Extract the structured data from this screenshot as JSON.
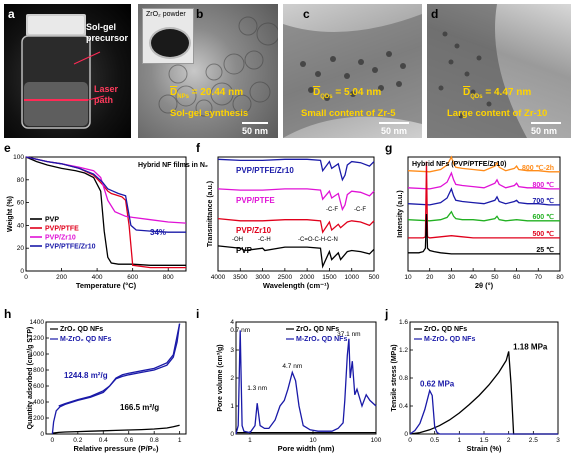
{
  "panels": {
    "a": {
      "label": "a",
      "sol_gel": "Sol-gel\nprecursor",
      "laser": "Laser\npath"
    },
    "b": {
      "label": "b",
      "inset_label": "ZrO₂ powder",
      "size_main": "D",
      "size_sub": "NPs",
      "size_val": " = 20.44 nm",
      "caption": "Sol-gel synthesis",
      "scale": "50 nm"
    },
    "c": {
      "label": "c",
      "size_main": "D",
      "size_sub": "QDs",
      "size_val": " = 5.04 nm",
      "caption": "Small content of Zr-5",
      "scale": "50 nm"
    },
    "d": {
      "label": "d",
      "size_main": "D",
      "size_sub": "QDs",
      "size_val": " = 4.47 nm",
      "caption": "Large content of Zr-10",
      "scale": "50 nm"
    }
  },
  "colors": {
    "black": "#000000",
    "red": "#e0001b",
    "magenta": "#e012d6",
    "blue": "#1a1aa8",
    "green": "#22b022",
    "orange": "#ff8c1a",
    "purple": "#9b2fc9"
  },
  "chart_data": [
    {
      "id": "e",
      "label": "e",
      "type": "line",
      "xlabel": "Temperature (°C)",
      "ylabel": "Weight (%)",
      "xlim": [
        0,
        900
      ],
      "ylim": [
        0,
        100
      ],
      "xticks": [
        0,
        200,
        400,
        600,
        800
      ],
      "yticks": [
        0,
        20,
        40,
        60,
        80,
        100
      ],
      "annotation": "Hybrid NF films in N₂",
      "annotation2": "34%",
      "legend": [
        "PVP",
        "PVP/PTFE",
        "PVP/Zr10",
        "PVP/PTFE/Zr10"
      ],
      "series": [
        {
          "name": "PVP",
          "color": "black",
          "x": [
            0,
            60,
            120,
            200,
            280,
            330,
            380,
            420,
            440,
            460,
            480,
            520,
            600,
            700,
            800,
            900
          ],
          "y": [
            100,
            96,
            93,
            90,
            88,
            86,
            82,
            70,
            35,
            12,
            7,
            6,
            6,
            5,
            5,
            5
          ]
        },
        {
          "name": "PVP/PTFE",
          "color": "red",
          "x": [
            0,
            60,
            120,
            200,
            300,
            380,
            430,
            460,
            480,
            500,
            520,
            540,
            560,
            580,
            600,
            700,
            800,
            900
          ],
          "y": [
            100,
            98,
            96,
            94,
            90,
            84,
            76,
            70,
            68,
            67,
            66,
            65,
            62,
            40,
            5,
            3,
            3,
            3
          ]
        },
        {
          "name": "PVP/Zr10",
          "color": "magenta",
          "x": [
            0,
            60,
            120,
            200,
            300,
            380,
            420,
            460,
            500,
            560,
            600,
            700,
            800,
            900
          ],
          "y": [
            100,
            98,
            96,
            94,
            91,
            88,
            82,
            62,
            52,
            48,
            47,
            45,
            43,
            42
          ]
        },
        {
          "name": "PVP/PTFE/Zr10",
          "color": "blue",
          "x": [
            0,
            60,
            120,
            200,
            300,
            380,
            430,
            460,
            490,
            520,
            560,
            590,
            620,
            700,
            800,
            900
          ],
          "y": [
            100,
            98,
            96,
            94,
            90,
            85,
            78,
            72,
            70,
            68,
            66,
            40,
            36,
            35,
            34,
            34
          ]
        }
      ]
    },
    {
      "id": "f",
      "label": "f",
      "type": "line",
      "xlabel": "Wavelength (cm⁻¹)",
      "ylabel": "Transmittance (a.u.)",
      "xlim": [
        4000,
        500
      ],
      "xticks": [
        4000,
        3500,
        3000,
        2500,
        2000,
        1500,
        1000,
        500
      ],
      "peaks": [
        "-OH",
        "-C-H",
        "-C=O-C-H-C-N",
        "-C-F",
        "-C-F"
      ],
      "series": [
        {
          "name": "PVP/PTFE/Zr10",
          "color": "blue",
          "x": [
            4000,
            3500,
            3000,
            2500,
            2000,
            1700,
            1650,
            1500,
            1450,
            1300,
            1250,
            1210,
            1150,
            1100,
            1000,
            800,
            600,
            500
          ],
          "y": [
            0.98,
            0.97,
            0.97,
            0.98,
            0.98,
            0.97,
            0.88,
            0.96,
            0.9,
            0.94,
            0.86,
            0.8,
            0.84,
            0.93,
            0.96,
            0.95,
            0.92,
            0.96
          ]
        },
        {
          "name": "PVP/PTFE",
          "color": "magenta",
          "x": [
            4000,
            3500,
            3000,
            2500,
            2000,
            1700,
            1650,
            1500,
            1450,
            1300,
            1250,
            1210,
            1150,
            1100,
            1000,
            800,
            600,
            500
          ],
          "y": [
            0.72,
            0.71,
            0.71,
            0.72,
            0.72,
            0.71,
            0.63,
            0.7,
            0.64,
            0.68,
            0.6,
            0.54,
            0.58,
            0.67,
            0.7,
            0.69,
            0.66,
            0.7
          ]
        },
        {
          "name": "PVP/Zr10",
          "color": "red",
          "x": [
            4000,
            3500,
            3000,
            2500,
            2000,
            1700,
            1650,
            1500,
            1450,
            1300,
            1250,
            1100,
            1000,
            800,
            600,
            500
          ],
          "y": [
            0.46,
            0.44,
            0.44,
            0.45,
            0.45,
            0.44,
            0.34,
            0.43,
            0.36,
            0.41,
            0.38,
            0.43,
            0.44,
            0.43,
            0.4,
            0.44
          ]
        },
        {
          "name": "PVP",
          "color": "black",
          "x": [
            4000,
            3500,
            3400,
            3000,
            2950,
            2500,
            2000,
            1700,
            1650,
            1500,
            1450,
            1300,
            1250,
            1100,
            1000,
            800,
            600,
            500
          ],
          "y": [
            0.22,
            0.2,
            0.18,
            0.2,
            0.18,
            0.21,
            0.21,
            0.2,
            0.04,
            0.17,
            0.1,
            0.16,
            0.1,
            0.17,
            0.18,
            0.17,
            0.15,
            0.19
          ]
        }
      ]
    },
    {
      "id": "g",
      "label": "g",
      "type": "line",
      "xlabel": "2θ (°)",
      "ylabel": "Intensity (a.u.)",
      "xlim": [
        10,
        80
      ],
      "xticks": [
        10,
        20,
        30,
        40,
        50,
        60,
        70,
        80
      ],
      "title": "Hybrid NFs (PVP/PTFE/Zr10)",
      "series": [
        {
          "name": "800 ℃-2h",
          "color": "orange",
          "x": [
            10,
            20,
            25,
            28,
            30,
            31,
            32,
            35,
            40,
            45,
            50,
            51,
            52,
            55,
            59,
            60,
            61,
            65,
            70,
            75,
            80
          ],
          "y": [
            0.88,
            0.87,
            0.89,
            0.93,
            1.0,
            0.94,
            0.91,
            0.9,
            0.89,
            0.88,
            0.92,
            0.95,
            0.91,
            0.88,
            0.9,
            0.92,
            0.89,
            0.88,
            0.88,
            0.87,
            0.87
          ]
        },
        {
          "name": "800 ℃",
          "color": "magenta",
          "x": [
            10,
            20,
            25,
            28,
            30,
            31,
            32,
            35,
            40,
            45,
            50,
            51,
            52,
            55,
            59,
            60,
            61,
            65,
            70,
            75,
            80
          ],
          "y": [
            0.73,
            0.72,
            0.74,
            0.78,
            0.86,
            0.8,
            0.76,
            0.75,
            0.74,
            0.73,
            0.77,
            0.8,
            0.76,
            0.73,
            0.75,
            0.77,
            0.74,
            0.73,
            0.73,
            0.72,
            0.72
          ]
        },
        {
          "name": "700 ℃",
          "color": "blue",
          "x": [
            10,
            20,
            25,
            28,
            30,
            31,
            32,
            35,
            40,
            45,
            50,
            51,
            52,
            55,
            59,
            60,
            61,
            65,
            70,
            75,
            80
          ],
          "y": [
            0.59,
            0.58,
            0.6,
            0.64,
            0.72,
            0.66,
            0.62,
            0.61,
            0.6,
            0.59,
            0.62,
            0.65,
            0.61,
            0.59,
            0.61,
            0.62,
            0.6,
            0.59,
            0.59,
            0.58,
            0.58
          ]
        },
        {
          "name": "600 ℃",
          "color": "green",
          "x": [
            10,
            20,
            25,
            28,
            30,
            31,
            32,
            35,
            40,
            45,
            50,
            51,
            52,
            55,
            60,
            65,
            70,
            75,
            80
          ],
          "y": [
            0.45,
            0.44,
            0.45,
            0.47,
            0.52,
            0.48,
            0.46,
            0.45,
            0.45,
            0.44,
            0.46,
            0.48,
            0.45,
            0.44,
            0.45,
            0.44,
            0.44,
            0.44,
            0.44
          ]
        },
        {
          "name": "500 ℃",
          "color": "red",
          "x": [
            10,
            17,
            18,
            18.5,
            19,
            20,
            25,
            30,
            35,
            40,
            50,
            60,
            70,
            80
          ],
          "y": [
            0.29,
            0.29,
            0.3,
            0.96,
            0.3,
            0.29,
            0.3,
            0.31,
            0.3,
            0.29,
            0.29,
            0.29,
            0.29,
            0.29
          ]
        },
        {
          "name": "25 ℃",
          "color": "black",
          "x": [
            10,
            15,
            17,
            18,
            18.5,
            19,
            20,
            22,
            25,
            30,
            40,
            50,
            60,
            70,
            80
          ],
          "y": [
            0.16,
            0.16,
            0.17,
            0.2,
            0.5,
            0.2,
            0.18,
            0.17,
            0.16,
            0.15,
            0.15,
            0.15,
            0.15,
            0.15,
            0.15
          ]
        }
      ]
    },
    {
      "id": "h",
      "label": "h",
      "type": "line",
      "xlabel": "Relative pressure (P/P₀)",
      "ylabel": "Quantity adsorbed (cm³/g STP)",
      "xlim": [
        -0.05,
        1.05
      ],
      "ylim": [
        0,
        1400
      ],
      "xticks": [
        0.0,
        0.2,
        0.4,
        0.6,
        0.8,
        1.0
      ],
      "yticks": [
        0,
        200,
        400,
        600,
        800,
        1000,
        1200,
        1400
      ],
      "legend": [
        "ZrO₂ QD NFs",
        "M-ZrO₂ QD NFs"
      ],
      "annotations": [
        "1244.8 m²/g",
        "166.5 m²/g"
      ],
      "series": [
        {
          "name": "ZrO₂ QD NFs",
          "color": "black",
          "x": [
            0,
            0.05,
            0.1,
            0.2,
            0.3,
            0.4,
            0.5,
            0.6,
            0.7,
            0.8,
            0.9,
            0.95,
            1.0
          ],
          "y": [
            10,
            20,
            25,
            30,
            35,
            40,
            45,
            50,
            55,
            62,
            75,
            90,
            110
          ]
        },
        {
          "name": "M-ZrO₂ QD NFs",
          "color": "blue",
          "x": [
            0,
            0.01,
            0.03,
            0.06,
            0.1,
            0.2,
            0.3,
            0.4,
            0.45,
            0.5,
            0.55,
            0.6,
            0.7,
            0.8,
            0.9,
            0.95,
            0.98,
            1.0
          ],
          "y": [
            0,
            150,
            290,
            340,
            370,
            420,
            460,
            520,
            600,
            690,
            720,
            740,
            770,
            800,
            860,
            960,
            1150,
            1380
          ]
        },
        {
          "name": "M-ZrO₂ QD NFs desorption",
          "color": "blue",
          "x": [
            1.0,
            0.95,
            0.9,
            0.8,
            0.7,
            0.6,
            0.55,
            0.5,
            0.45,
            0.4,
            0.3,
            0.2,
            0.1,
            0.05
          ],
          "y": [
            1380,
            990,
            890,
            820,
            790,
            760,
            740,
            700,
            600,
            540,
            470,
            430,
            380,
            350
          ]
        }
      ]
    },
    {
      "id": "i",
      "label": "i",
      "type": "line",
      "xlabel": "Pore width (nm)",
      "ylabel": "Pore volume (cm³/g)",
      "xlim_log": [
        0.6,
        100
      ],
      "ylim": [
        0,
        4
      ],
      "yticks": [
        0,
        1,
        2,
        3,
        4
      ],
      "xticks": [
        1,
        10,
        100
      ],
      "legend": [
        "ZrO₂ QD NFs",
        "M-ZrO₂ QD NFs"
      ],
      "annotations": [
        "0.7 nm",
        "1.3 nm",
        "4.7 nm",
        "37.1 nm"
      ],
      "series": [
        {
          "name": "ZrO₂ QD NFs",
          "color": "black",
          "x": [
            0.6,
            1,
            2,
            5,
            10,
            30,
            100
          ],
          "y": [
            0.05,
            0.05,
            0.05,
            0.05,
            0.05,
            0.05,
            0.05
          ]
        },
        {
          "name": "M-ZrO₂ QD NFs",
          "color": "blue",
          "x": [
            0.6,
            0.65,
            0.7,
            0.75,
            0.8,
            1.0,
            1.2,
            1.3,
            1.45,
            1.7,
            2.0,
            2.5,
            3.0,
            3.5,
            4.0,
            4.7,
            5.3,
            6.0,
            7.0,
            9,
            12,
            16,
            20,
            25,
            30,
            32,
            35,
            37.1,
            39,
            42,
            46,
            50,
            60,
            70,
            80,
            100
          ],
          "y": [
            0.0,
            0.3,
            3.7,
            0.3,
            0.1,
            0.05,
            0.3,
            1.1,
            0.3,
            0.2,
            0.2,
            0.5,
            1.0,
            1.2,
            1.6,
            2.2,
            1.9,
            1.0,
            0.3,
            0.15,
            0.1,
            0.1,
            0.1,
            0.2,
            0.4,
            1.2,
            2.8,
            3.4,
            2.0,
            2.6,
            1.4,
            1.6,
            1.0,
            1.4,
            1.2,
            1.0
          ]
        }
      ]
    },
    {
      "id": "j",
      "label": "j",
      "type": "line",
      "xlabel": "Strain (%)",
      "ylabel": "Tensile stress (MPa)",
      "xlim": [
        0,
        3.0
      ],
      "ylim": [
        0,
        1.6
      ],
      "xticks": [
        0,
        0.5,
        1.0,
        1.5,
        2.0,
        2.5,
        3.0
      ],
      "yticks": [
        0,
        0.4,
        0.8,
        1.2,
        1.6
      ],
      "legend": [
        "ZrO₂ QD NFs",
        "M-ZrO₂ QD NFs"
      ],
      "annotations": [
        "1.18 MPa",
        "0.62 MPa"
      ],
      "series": [
        {
          "name": "ZrO₂ QD NFs",
          "color": "black",
          "x": [
            0,
            0.2,
            0.4,
            0.6,
            0.8,
            1.0,
            1.2,
            1.4,
            1.6,
            1.8,
            1.95,
            2.0,
            2.05,
            2.1,
            2.2,
            2.5,
            3.0
          ],
          "y": [
            0,
            0.02,
            0.06,
            0.12,
            0.2,
            0.3,
            0.42,
            0.55,
            0.7,
            0.88,
            1.05,
            1.18,
            0.7,
            0.0,
            0.0,
            0.0,
            0.0
          ]
        },
        {
          "name": "M-ZrO₂ QD NFs",
          "color": "blue",
          "x": [
            0,
            0.1,
            0.2,
            0.3,
            0.4,
            0.45,
            0.5,
            0.55,
            0.6,
            1.0,
            3.0
          ],
          "y": [
            0,
            0.05,
            0.15,
            0.35,
            0.62,
            0.55,
            0.1,
            0.02,
            0.0,
            0.0,
            0.0
          ]
        }
      ]
    }
  ]
}
